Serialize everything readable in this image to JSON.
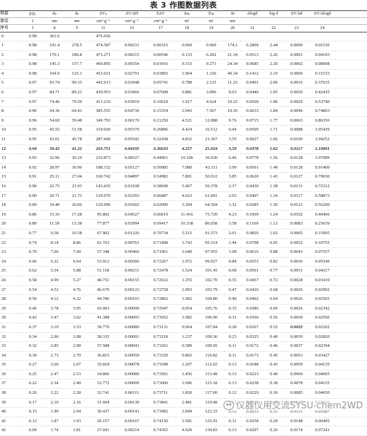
{
  "title": "表 3  作图数据列表",
  "header": {
    "row1": [
      "项目",
      "p/p₀",
      "dₚ",
      "d̄ₚ",
      "ΔVₚ",
      "ΔV/ΔD",
      "ΣΔV",
      "Δsₚ",
      "Σsₚ",
      "Δt",
      "Δlogd",
      "log d̄",
      "ΔV/Δd",
      "ΔV/Δlogd"
    ],
    "row2": [
      "单位",
      "1",
      "nm",
      "nm",
      "cm³·g⁻¹",
      "cm³·g⁻¹",
      "cm³·g⁻¹",
      "m²",
      "m²",
      "nm",
      "",
      "",
      "",
      ""
    ],
    "row3": [
      "序号",
      "1",
      "8",
      "9",
      "11",
      "16",
      "17",
      "18",
      "19",
      "20",
      "21",
      "22",
      "23",
      "24"
    ]
  },
  "rows": [
    [
      "0",
      "0.99",
      "361.6",
      "",
      "476.656",
      "",
      "",
      "",
      "",
      "",
      "",
      "",
      "",
      ""
    ],
    [
      "1",
      "0.98",
      "191.4",
      "278.5",
      "474.587",
      "0.00231",
      "0.00315",
      "0.069",
      "0.069",
      "174.1",
      "0.2809",
      "2.44",
      "0.0000",
      "0.01150"
    ],
    [
      "2",
      "0.98",
      "170.1",
      "180.8",
      "473.271",
      "0.00215",
      "0.00546",
      "0.133",
      "0.202",
      "21.34",
      "0.0513",
      "2.26",
      "0.0001",
      "0.04193"
    ],
    [
      "3",
      "0.98",
      "145.3",
      "157.7",
      "469.895",
      "0.00354",
      "0.01016",
      "0.153",
      "0.273",
      "24.34",
      "0.0685",
      "2.20",
      "0.0002",
      "0.08098"
    ],
    [
      "4",
      "0.98",
      "104.9",
      "125.1",
      "453.021",
      "0.02791",
      "0.03892",
      "1.064",
      "1.336",
      "40.34",
      "0.1412",
      "2.10",
      "0.0006",
      "0.15153"
    ],
    [
      "5",
      "0.97",
      "93.74",
      "99.35",
      "442.013",
      "0.01848",
      "0.05741",
      "0.789",
      "2.125",
      "11.23",
      "0.0491",
      "2.00",
      "0.0016",
      "0.37635"
    ],
    [
      "6",
      "0.97",
      "84.71",
      "89.23",
      "430.953",
      "0.01866",
      "0.07608",
      "0.881",
      "3.006",
      "9.03",
      "0.0440",
      "1.95",
      "0.0020",
      "0.42435"
    ],
    [
      "7",
      "0.97",
      "74.46",
      "79.59",
      "413.219",
      "0.03010",
      "0.10618",
      "1.617",
      "4.624",
      "10.25",
      "0.0560",
      "1.90",
      "0.0029",
      "0.53740"
    ],
    [
      "8",
      "0.96",
      "64.36",
      "69.41",
      "385.555",
      "0.04736",
      "0.15354",
      "2.943",
      "7.567",
      "10.10",
      "0.0633",
      "1.84",
      "0.0046",
      "0.74803"
    ],
    [
      "9",
      "0.96",
      "54.60",
      "59.48",
      "349.793",
      "0.06170",
      "0.21250",
      "4.521",
      "12.088",
      "9.76",
      "0.0715",
      "1.77",
      "0.0063",
      "0.86356"
    ],
    [
      "10",
      "0.95",
      "45.55",
      "51.58",
      "319.020",
      "0.05370",
      "0.26896",
      "4.424",
      "16.512",
      "6.04",
      "0.0509",
      "1.71",
      "0.0088",
      "1.05439"
    ],
    [
      "11",
      "0.95",
      "43.01",
      "45.78",
      "287.449",
      "0.05542",
      "0.32438",
      "4.832",
      "21.367",
      "3.55",
      "0.0027",
      "1.66",
      "0.0100",
      "1.04252"
    ],
    [
      "12",
      "0.94",
      "39.42",
      "41.22",
      "263.751",
      "0.04195",
      "0.36633",
      "4.257",
      "25.924",
      "3.59",
      "0.0378",
      "1.62",
      "0.0117",
      "1.10961"
    ],
    [
      "13",
      "0.93",
      "32.96",
      "36.19",
      "216.873",
      "0.08327",
      "0.44961",
      "10.106",
      "36.030",
      "6.46",
      "0.0778",
      "1.56",
      "0.0128",
      "1.07089"
    ],
    [
      "14",
      "0.92",
      "28.97",
      "30.96",
      "188.152",
      "0.05127",
      "0.50085",
      "7.080",
      "43.111",
      "3.99",
      "0.0561",
      "1.49",
      "0.0128",
      "0.91400"
    ],
    [
      "15",
      "0.91",
      "25.11",
      "27.04",
      "160.742",
      "0.04897",
      "0.54982",
      "7.801",
      "50.912",
      "3.85",
      "0.0620",
      "1.43",
      "0.0127",
      "0.79030"
    ],
    [
      "16",
      "0.90",
      "22.75",
      "23.93",
      "143.435",
      "0.03108",
      "0.58049",
      "5.467",
      "56.378",
      "2.37",
      "0.0430",
      "1.38",
      "0.0131",
      "0.72312"
    ],
    [
      "17",
      "0.90",
      "20.71",
      "21.73",
      "129.970",
      "0.02393",
      "0.60487",
      "4.623",
      "61.001",
      "2.03",
      "0.0407",
      "1.34",
      "0.0117",
      "0.58873"
    ],
    [
      "18",
      "0.89",
      "19.40",
      "20.06",
      "120.996",
      "0.01602",
      "0.62090",
      "3.304",
      "64.304",
      "1.32",
      "0.0285",
      "1.30",
      "0.0121",
      "0.56200"
    ],
    [
      "19",
      "0.86",
      "15.16",
      "17.28",
      "95.802",
      "0.04527",
      "0.66619",
      "11.416",
      "75.720",
      "4.23",
      "0.1069",
      "1.24",
      "0.0102",
      "0.40466"
    ],
    [
      "20",
      "0.80",
      "11.59",
      "13.38",
      "77.877",
      "0.02994",
      "0.69417",
      "10.338",
      "86.058",
      "3.58",
      "0.1169",
      "1.13",
      "0.0083",
      "0.25639"
    ],
    [
      "21",
      "0.77",
      "9.58",
      "10.58",
      "67.902",
      "0.01320",
      "0.70734",
      "5.515",
      "91.573",
      "2.01",
      "0.0826",
      "1.02",
      "0.0065",
      "0.15995"
    ],
    [
      "22",
      "0.74",
      "8.14",
      "8.86",
      "61.763",
      "0.00761",
      "0.71498",
      "3.743",
      "95.314",
      "1.44",
      "0.0708",
      "0.95",
      "0.0052",
      "0.10755"
    ],
    [
      "23",
      "0.70",
      "7.06",
      "7.60",
      "57.348",
      "0.00466",
      "0.71961",
      "2.640",
      "97.955",
      "1.08",
      "0.0616",
      "0.88",
      "0.0043",
      "0.07557"
    ],
    [
      "24",
      "0.66",
      "6.22",
      "6.64",
      "53.912",
      "0.00306",
      "0.72267",
      "1.972",
      "99.927",
      "0.84",
      "0.0553",
      "0.82",
      "0.0036",
      "0.05549"
    ],
    [
      "25",
      "0.62",
      "5.54",
      "5.88",
      "51.118",
      "0.00211",
      "0.72478",
      "1.524",
      "101.45",
      "0.68",
      "0.0501",
      "0.77",
      "0.0031",
      "0.04217"
    ],
    [
      "26",
      "0.58",
      "4.99",
      "5.27",
      "48.751",
      "0.00155",
      "0.72632",
      "1.255",
      "102.70",
      "0.55",
      "0.0457",
      "0.72",
      "0.0028",
      "0.03419"
    ],
    [
      "27",
      "0.54",
      "4.52",
      "4.76",
      "46.670",
      "0.00123",
      "0.72758",
      "1.093",
      "103.79",
      "0.47",
      "0.0426",
      "0.68",
      "0.0026",
      "0.02902"
    ],
    [
      "28",
      "0.50",
      "4.12",
      "4.32",
      "44.786",
      "0.00103",
      "0.72862",
      "1.002",
      "104.80",
      "0.40",
      "0.0402",
      "0.64",
      "0.0026",
      "0.02565"
    ],
    [
      "29",
      "0.46",
      "3.78",
      "3.95",
      "43.003",
      "0.00090",
      "0.72947",
      "0.954",
      "105.76",
      "0.35",
      "0.0386",
      "0.60",
      "0.0026",
      "0.02342"
    ],
    [
      "30",
      "0.42",
      "3.47",
      "3.62",
      "41.388",
      "0.00093",
      "0.73052",
      "1.082",
      "106.90",
      "0.31",
      "0.0366",
      "0.56",
      "0.0030",
      "0.02566"
    ],
    [
      "31",
      "0.37",
      "3.19",
      "3.33",
      "39.770",
      "0.00080",
      "0.73131",
      "0.964",
      "107.84",
      "0.28",
      "0.0367",
      "0.52",
      "0.0032",
      "0.02202"
    ],
    [
      "32",
      "0.34",
      "2.96",
      "3.08",
      "38.335",
      "0.00091",
      "0.73218",
      "1.237",
      "109.36",
      "0.23",
      "0.0325",
      "0.49",
      "0.0039",
      "0.02820"
    ],
    [
      "33",
      "0.32",
      "2.85",
      "2.90",
      "37.588",
      "0.00041",
      "0.73261",
      "0.589",
      "109.95",
      "0.11",
      "0.0172",
      "0.46",
      "0.0037",
      "0.02394"
    ],
    [
      "34",
      "0.30",
      "2.73",
      "2.79",
      "36.815",
      "0.00059",
      "0.73320",
      "0.865",
      "110.82",
      "0.11",
      "0.0173",
      "0.45",
      "0.0053",
      "0.03427"
    ],
    [
      "35",
      "0.27",
      "2.60",
      "2.67",
      "35.818",
      "0.00078",
      "0.73398",
      "1.207",
      "112.02",
      "0.13",
      "0.0188",
      "0.43",
      "0.0059",
      "0.04135"
    ],
    [
      "36",
      "0.25",
      "2.47",
      "2.53",
      "34.806",
      "0.00089",
      "0.73501",
      "1.456",
      "113.48",
      "0.13",
      "0.0223",
      "0.40",
      "0.0069",
      "0.04005"
    ],
    [
      "37",
      "0.22",
      "2.34",
      "2.40",
      "33.772",
      "0.00099",
      "0.73600",
      "1.696",
      "115.18",
      "0.13",
      "0.0238",
      "0.38",
      "0.0078",
      "0.04155"
    ],
    [
      "38",
      "0.20",
      "2.22",
      "2.28",
      "32.741",
      "0.00111",
      "0.73711",
      "1.820",
      "117.00",
      "0.12",
      "0.0229",
      "0.36",
      "0.0085",
      "0.04650"
    ],
    [
      "39",
      "0.17",
      "2.10",
      "2.16",
      "31.604",
      "0.00130",
      "0.73841",
      "2.481",
      "119.48",
      "0.12",
      "0.0243",
      "0.33",
      "0.0107",
      "0.05356"
    ],
    [
      "40",
      "0.15",
      "1.99",
      "2.04",
      "30.437",
      "0.00141",
      "0.73982",
      "2.849",
      "122.33",
      "0.12",
      "0.0253",
      "0.31",
      "0.0115",
      "0.05587"
    ],
    [
      "41",
      "0.12",
      "1.87",
      "1.93",
      "29.157",
      "0.00167",
      "0.74150",
      "3.581",
      "125.91",
      "0.11",
      "0.0258",
      "0.29",
      "0.0148",
      "0.06495"
    ],
    [
      "42",
      "0.09",
      "1.74",
      "1.81",
      "27.691",
      "0.00214",
      "0.74365",
      "4.920",
      "130.83",
      "0.13",
      "0.0297",
      "0.26",
      "0.0174",
      "0.07241"
    ]
  ],
  "highlight_rows": [
    "12"
  ],
  "emph_cells": [
    {
      "row": "31",
      "col": 12
    }
  ],
  "watermark": {
    "text": "仪器仪用交流SYSU-chem2WD",
    "icon": "wechat-icon"
  }
}
